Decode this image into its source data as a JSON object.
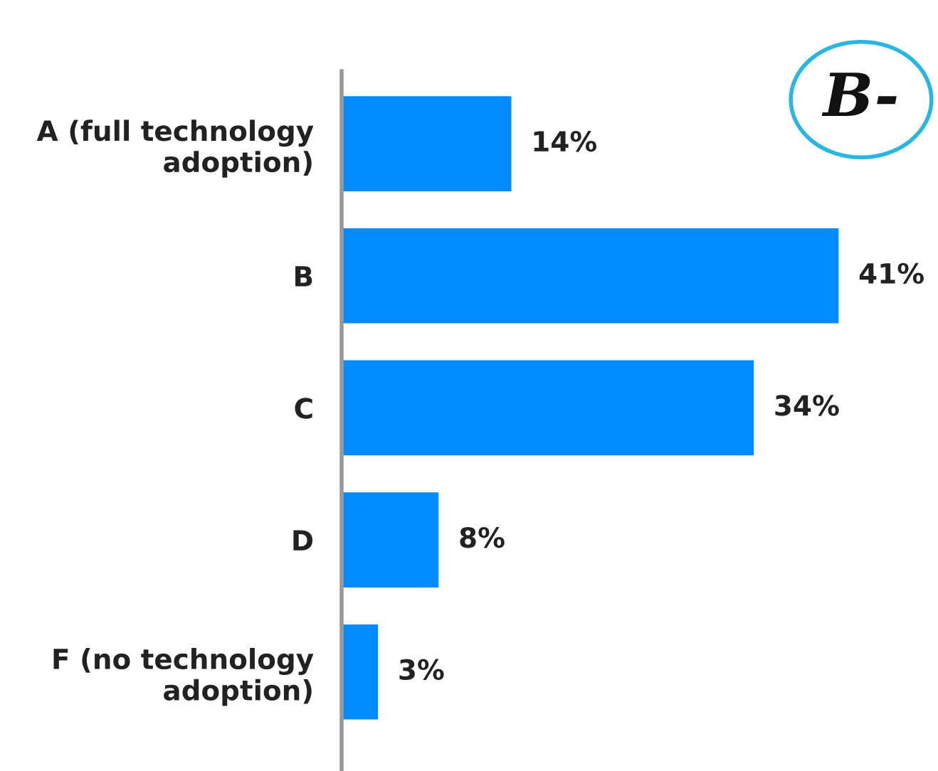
{
  "chart_data": {
    "type": "bar",
    "orientation": "horizontal",
    "categories": [
      "A (full technology\nadoption)",
      "B",
      "C",
      "D",
      "F (no technology\nadoption)"
    ],
    "values": [
      14,
      41,
      34,
      8,
      3
    ],
    "color": "#008cff",
    "data_labels": true,
    "value_labels": [
      "14%",
      "41%",
      "34%",
      "8%",
      "3%"
    ],
    "tick_labels": "y",
    "grid": false,
    "legend": false,
    "annotations": [
      "B-"
    ]
  }
}
